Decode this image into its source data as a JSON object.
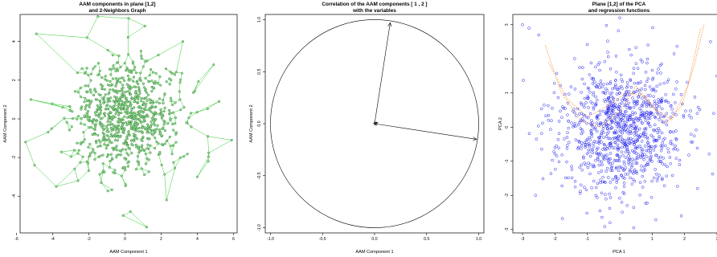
{
  "chart_data": [
    {
      "type": "scatter",
      "title": "AAM components in plane [1,2]",
      "subtitle": "and 2-Neighbors Graph",
      "xlabel": "AAM Component 1",
      "ylabel": "AAM Component 2",
      "xlim": [
        -5.8,
        6.2
      ],
      "ylim": [
        -5.9,
        5.4
      ],
      "xticks": [
        "-6",
        "-4",
        "-2",
        "0",
        "2",
        "4",
        "6"
      ],
      "yticks": [
        "-4",
        "-2",
        "0",
        "2",
        "4"
      ],
      "grid": false,
      "legend": null,
      "colors": {
        "points": "#1f7a1f",
        "point_fill": "#9fdc9f",
        "edges": "#33cc33"
      },
      "n_points": 900,
      "series": [
        {
          "distribution": "bivariate normal cloud",
          "center": [
            0.1,
            0.1
          ],
          "sd": [
            1.45,
            1.35
          ],
          "outliers": [
            [
              -5.5,
              -1.2
            ],
            [
              -5.0,
              -2.4
            ],
            [
              -5.2,
              1.0
            ],
            [
              -4.9,
              4.4
            ],
            [
              -3.8,
              -3.5
            ],
            [
              -2.1,
              4.2
            ],
            [
              -1.5,
              5.3
            ],
            [
              0.2,
              5.2
            ],
            [
              1.1,
              4.8
            ],
            [
              3.2,
              4.0
            ],
            [
              4.9,
              2.8
            ],
            [
              5.9,
              -1.1
            ],
            [
              4.6,
              -2.2
            ],
            [
              0.3,
              -4.8
            ],
            [
              1.2,
              -5.6
            ],
            [
              -0.1,
              -5.0
            ],
            [
              2.3,
              -4.2
            ],
            [
              4.0,
              -3.0
            ],
            [
              -2.6,
              -3.2
            ],
            [
              5.2,
              0.9
            ]
          ]
        }
      ]
    },
    {
      "type": "vector",
      "title": "Correlation of the AAM components [ 1 , 2 ]",
      "subtitle": "with the variables",
      "xlabel": "AAM Component 1",
      "ylabel": "AAM Component 2",
      "xlim": [
        -1.05,
        1.05
      ],
      "ylim": [
        -1.05,
        1.05
      ],
      "xticks": [
        "-1.0",
        "-0.5",
        "0.0",
        "0.5",
        "1.0"
      ],
      "yticks": [
        "-1.0",
        "-0.5",
        "0.0",
        "0.5",
        "1.0"
      ],
      "grid": false,
      "legend": null,
      "unit_circle": true,
      "colors": {
        "arrows": "#000000",
        "circle": "#000000"
      },
      "vectors": [
        {
          "label": "",
          "x": 0.15,
          "y": 0.97
        },
        {
          "label": "",
          "x": 0.98,
          "y": -0.15
        },
        {
          "label": "",
          "x": 0.03,
          "y": 0.01
        },
        {
          "label": "",
          "x": -0.01,
          "y": 0.0
        }
      ]
    },
    {
      "type": "scatter",
      "title": "Plane [1,2] of the PCA",
      "subtitle": "and regression functions",
      "xlabel": "PCA 1",
      "ylabel": "PCA 2",
      "xlim": [
        -3.3,
        3.2
      ],
      "ylim": [
        -3.1,
        3.3
      ],
      "xticks": [
        "-3",
        "-2",
        "-1",
        "0",
        "1",
        "2",
        "3"
      ],
      "yticks": [
        "-3",
        "-2",
        "-1",
        "0",
        "1",
        "2",
        "3"
      ],
      "grid": false,
      "legend": null,
      "colors": {
        "points": "#2222ee",
        "regression": "#f2a35a"
      },
      "n_points": 1000,
      "series": [
        {
          "distribution": "bivariate normal cloud",
          "center": [
            0.0,
            -0.1
          ],
          "sd": [
            0.95,
            0.95
          ],
          "outliers": [
            [
              -3.0,
              3.0
            ],
            [
              -2.8,
              2.9
            ],
            [
              0.0,
              3.2
            ],
            [
              2.8,
              2.5
            ],
            [
              3.0,
              1.5
            ],
            [
              -2.5,
              2.7
            ],
            [
              -2.2,
              0.2
            ],
            [
              2.4,
              -1.8
            ],
            [
              -0.3,
              -2.8
            ],
            [
              1.9,
              -2.6
            ],
            [
              -2.6,
              -2.0
            ],
            [
              2.9,
              0.4
            ]
          ]
        }
      ],
      "regression_curves": [
        {
          "label": "",
          "points": [
            [
              -2.3,
              2.4
            ],
            [
              -1.8,
              1.0
            ],
            [
              -1.2,
              0.2
            ],
            [
              -0.6,
              0.0
            ],
            [
              0.0,
              0.45
            ],
            [
              0.5,
              1.2
            ],
            [
              1.0,
              0.6
            ],
            [
              1.6,
              0.2
            ],
            [
              2.1,
              1.2
            ],
            [
              2.5,
              2.9
            ]
          ]
        },
        {
          "label": "",
          "points": [
            [
              -2.2,
              1.9
            ],
            [
              -1.6,
              0.8
            ],
            [
              -1.0,
              0.3
            ],
            [
              -0.4,
              0.6
            ],
            [
              0.2,
              1.0
            ],
            [
              0.8,
              0.9
            ],
            [
              1.4,
              0.1
            ],
            [
              1.9,
              0.6
            ],
            [
              2.3,
              1.8
            ],
            [
              2.6,
              3.0
            ]
          ]
        }
      ]
    }
  ]
}
